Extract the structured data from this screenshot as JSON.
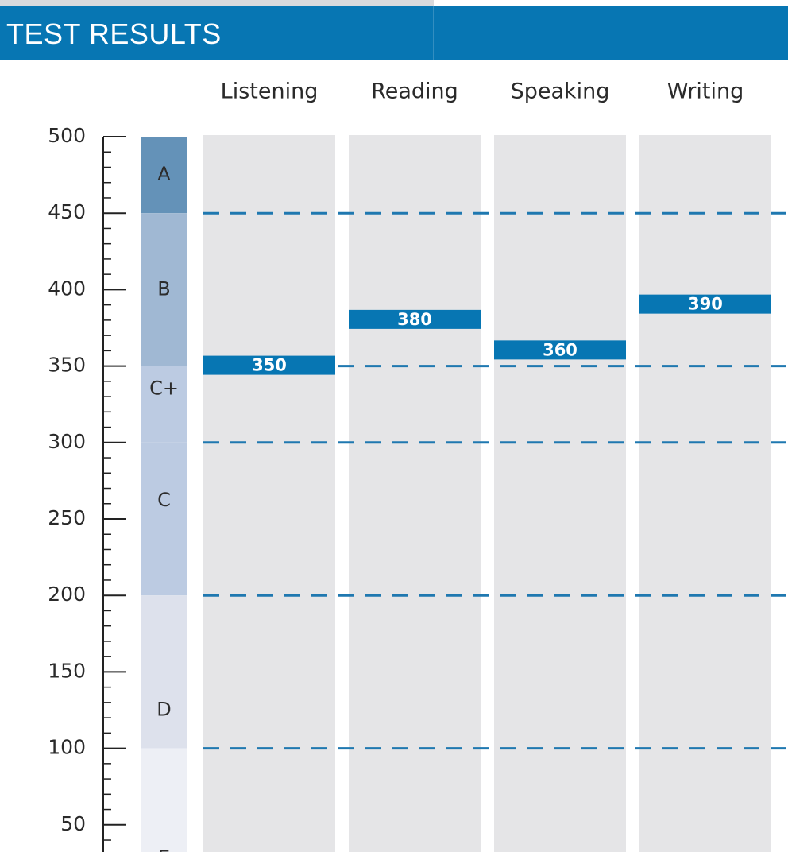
{
  "header": {
    "title": "TEST RESULTS"
  },
  "colors": {
    "header_bg": "#0776b3",
    "score_bar": "#0776b3",
    "column_bg": "#e5e5e7",
    "dash_line": "#1f78b0",
    "axis": "#222222",
    "score_text": "#ffffff"
  },
  "chart_data": {
    "type": "bar",
    "title": "",
    "xlabel": "",
    "ylabel": "",
    "ylim": [
      0,
      500
    ],
    "y_ticks": [
      50,
      100,
      150,
      200,
      250,
      300,
      350,
      400,
      450,
      500
    ],
    "grid": "dashed lines at grade boundaries",
    "categories": [
      "Listening",
      "Reading",
      "Speaking",
      "Writing"
    ],
    "values": [
      350,
      380,
      360,
      390
    ],
    "value_labels": [
      "350",
      "380",
      "360",
      "390"
    ],
    "grade_bands": [
      {
        "label": "A",
        "from": 450,
        "to": 500,
        "color": "#6492b8"
      },
      {
        "label": "B",
        "from": 350,
        "to": 450,
        "color": "#a0b8d3"
      },
      {
        "label": "C+",
        "from": 300,
        "to": 350,
        "color": "#bccbe2"
      },
      {
        "label": "C",
        "from": 200,
        "to": 300,
        "color": "#bccbe2"
      },
      {
        "label": "D",
        "from": 100,
        "to": 200,
        "color": "#dde1ec"
      },
      {
        "label": "E",
        "from": 0,
        "to": 100,
        "color": "#edeff5"
      }
    ],
    "boundary_lines": [
      450,
      350,
      300,
      200,
      100
    ]
  }
}
